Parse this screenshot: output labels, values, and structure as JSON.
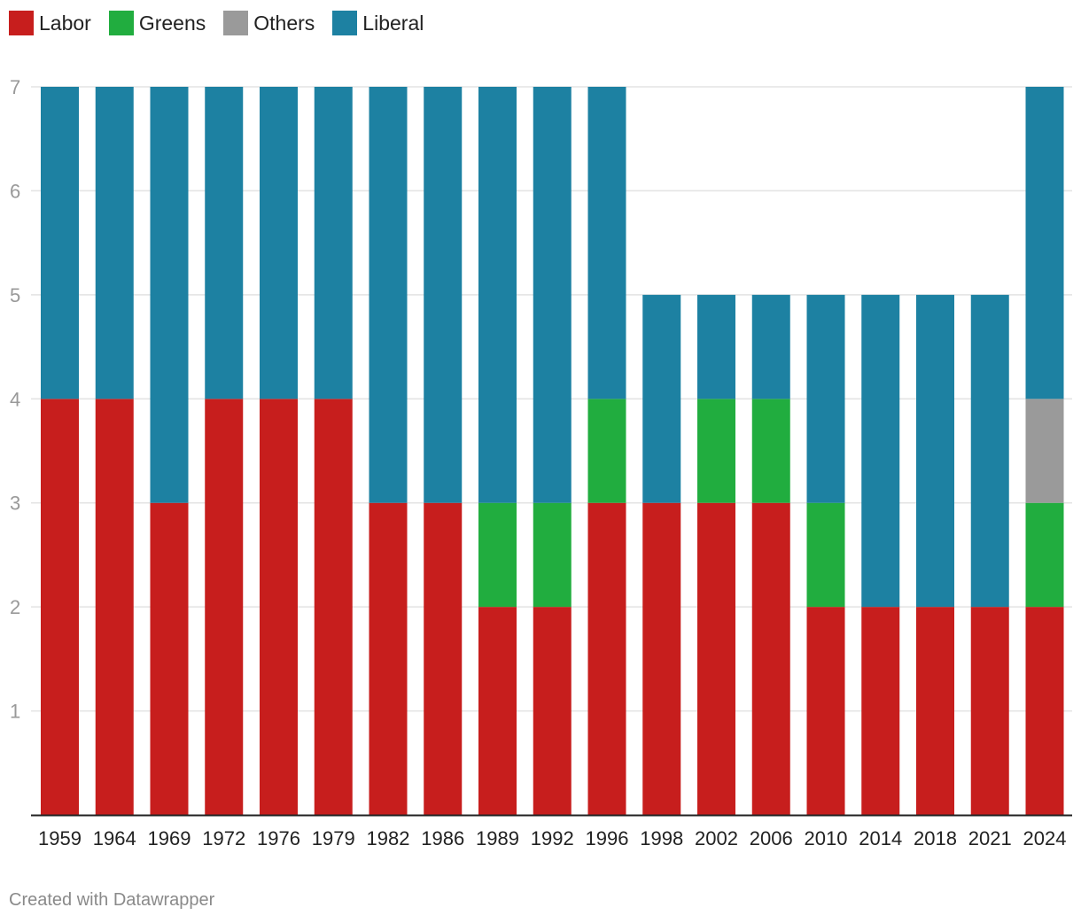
{
  "chart_data": {
    "type": "bar",
    "stacked": true,
    "title": "",
    "xlabel": "",
    "ylabel": "",
    "ylim": [
      0,
      7
    ],
    "yticks": [
      1,
      2,
      3,
      4,
      5,
      6,
      7
    ],
    "grid": true,
    "legend_position": "top-left",
    "categories": [
      "1959",
      "1964",
      "1969",
      "1972",
      "1976",
      "1979",
      "1982",
      "1986",
      "1989",
      "1992",
      "1996",
      "1998",
      "2002",
      "2006",
      "2010",
      "2014",
      "2018",
      "2021",
      "2024"
    ],
    "series": [
      {
        "name": "Labor",
        "color": "#c71e1d",
        "values": [
          4,
          4,
          3,
          4,
          4,
          4,
          3,
          3,
          2,
          2,
          3,
          3,
          3,
          3,
          2,
          2,
          2,
          2,
          2
        ]
      },
      {
        "name": "Greens",
        "color": "#21ad3f",
        "values": [
          0,
          0,
          0,
          0,
          0,
          0,
          0,
          0,
          1,
          1,
          1,
          0,
          1,
          1,
          1,
          0,
          0,
          0,
          1
        ]
      },
      {
        "name": "Others",
        "color": "#9a9a9a",
        "values": [
          0,
          0,
          0,
          0,
          0,
          0,
          0,
          0,
          0,
          0,
          0,
          0,
          0,
          0,
          0,
          0,
          0,
          0,
          1
        ]
      },
      {
        "name": "Liberal",
        "color": "#1d81a2",
        "values": [
          3,
          3,
          4,
          3,
          3,
          3,
          4,
          4,
          4,
          4,
          3,
          2,
          1,
          1,
          2,
          3,
          3,
          3,
          3
        ]
      }
    ]
  },
  "footer": {
    "credit": "Created with Datawrapper"
  }
}
